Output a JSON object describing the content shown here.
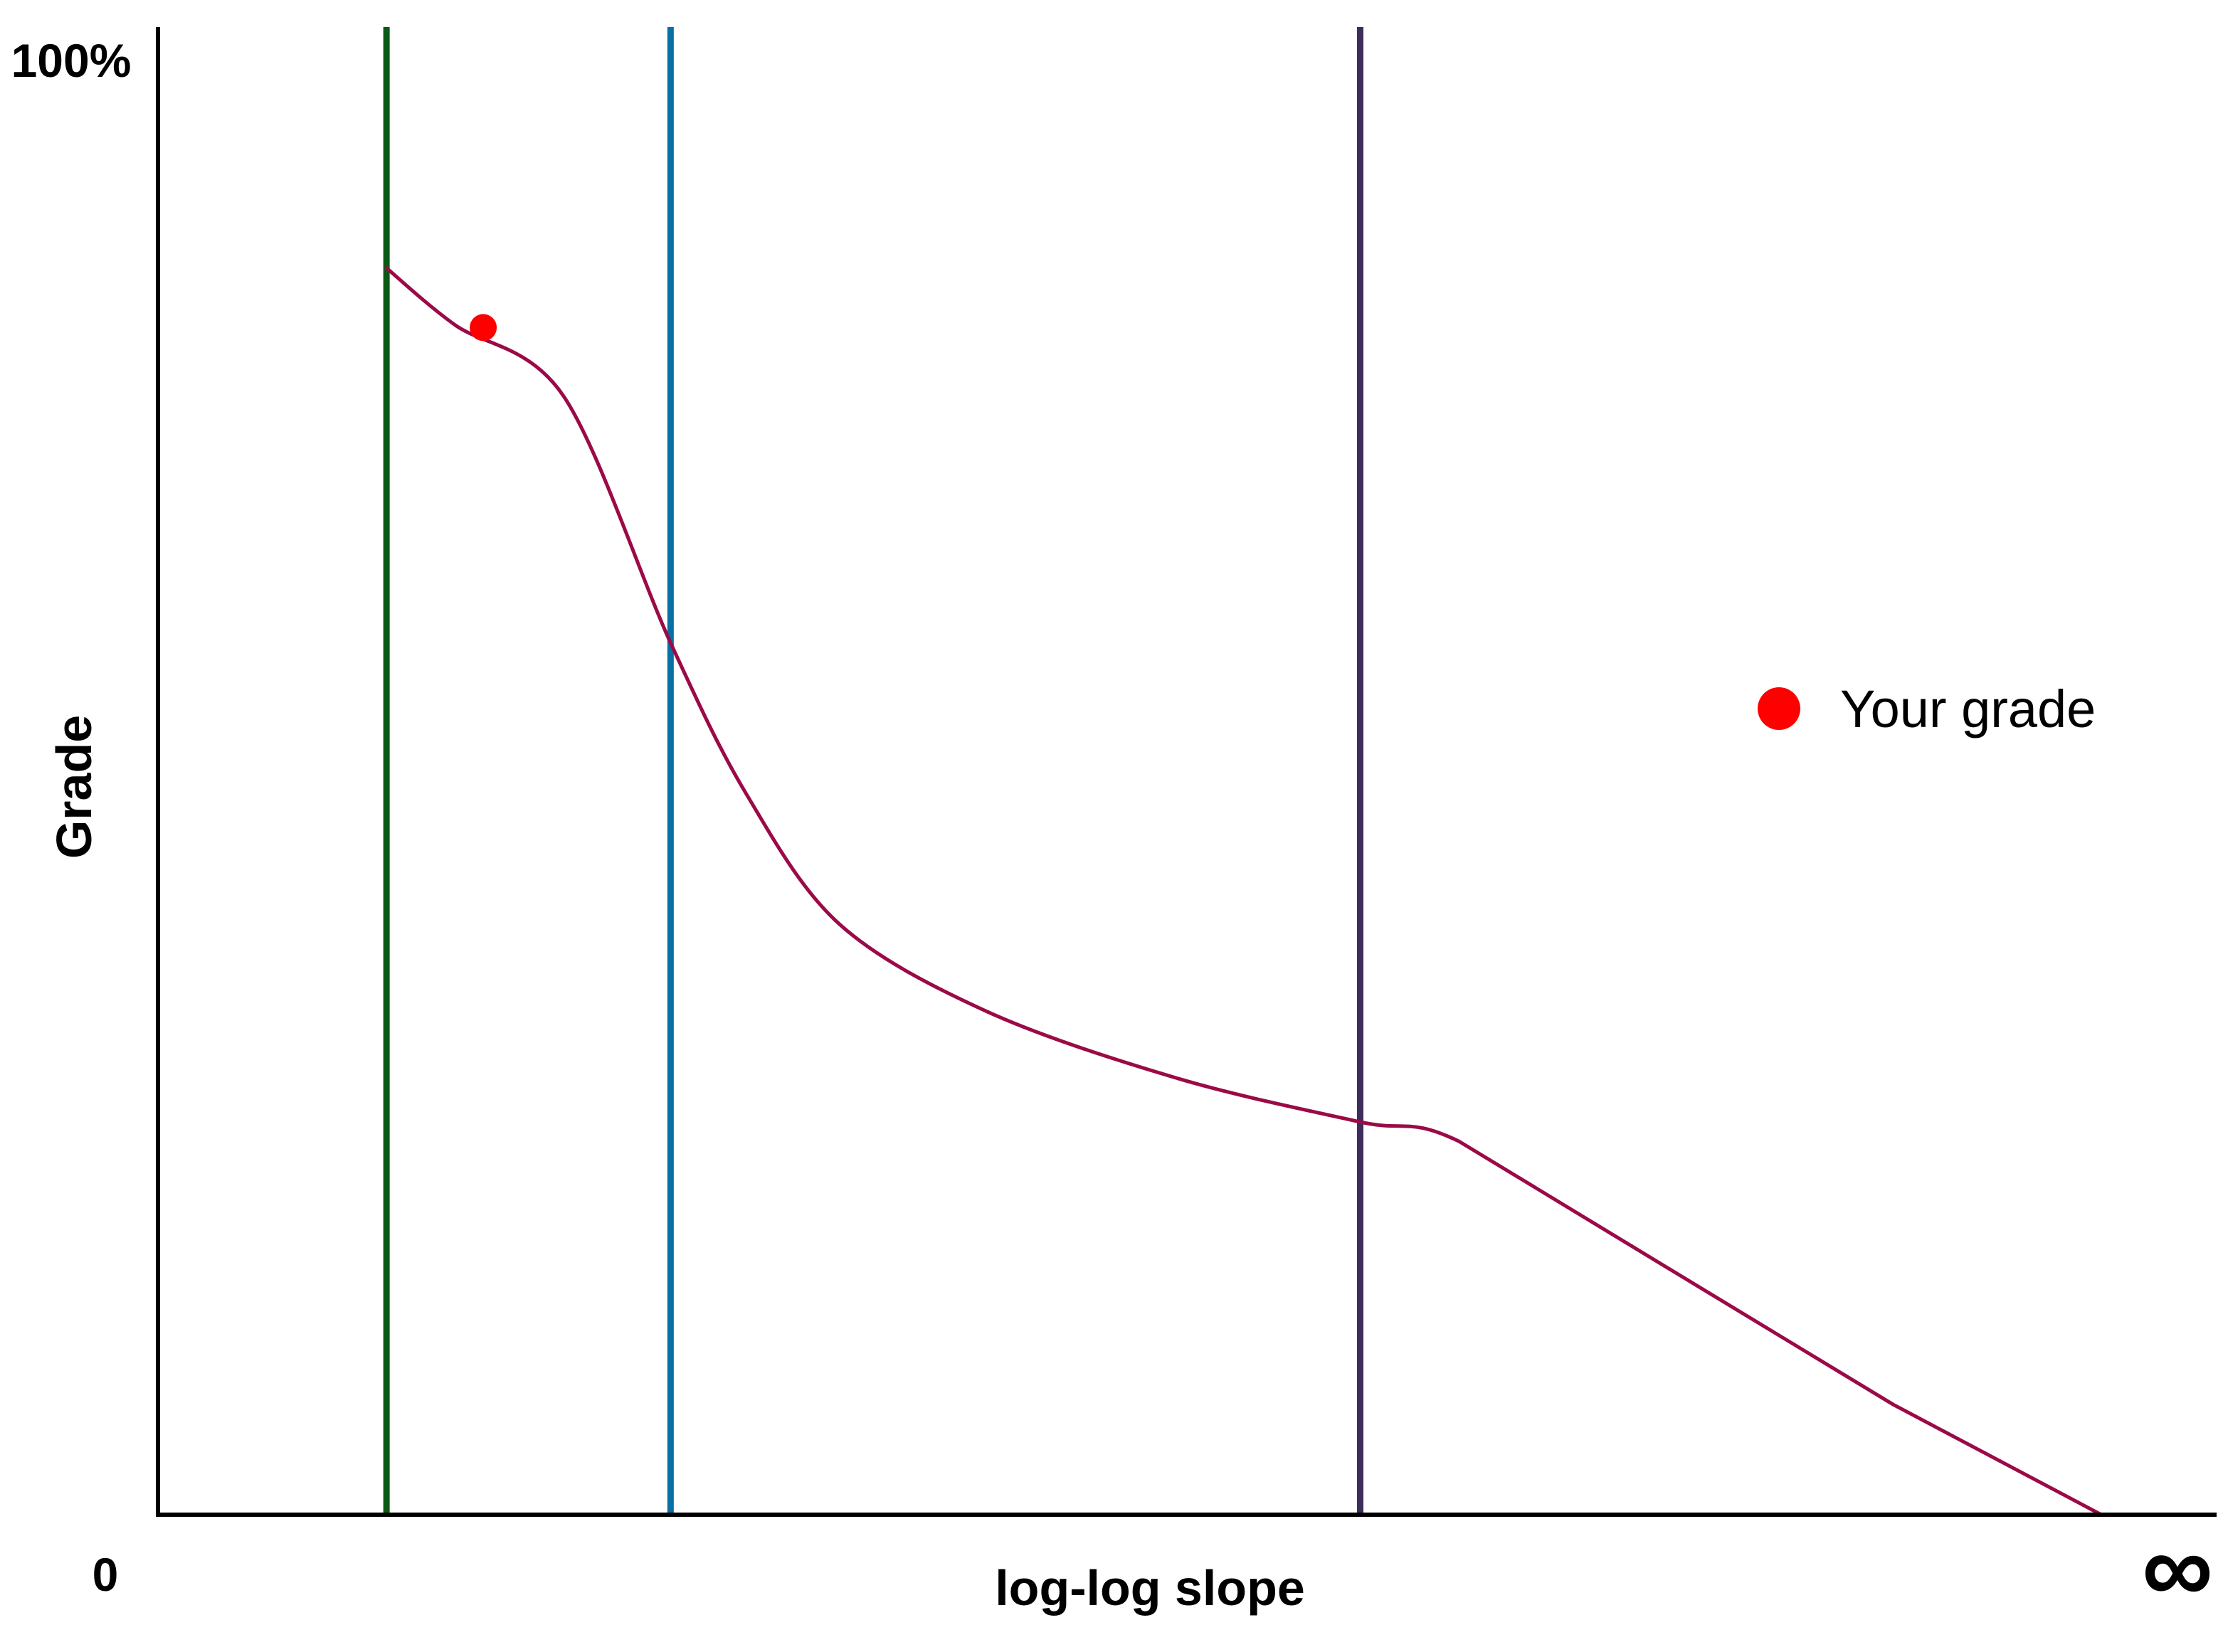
{
  "chart_data": {
    "type": "line",
    "xlabel": "log-log slope",
    "ylabel": "Grade",
    "x_tick_labels": {
      "start": "0",
      "end": "∞"
    },
    "y_tick_labels": {
      "top": "100%"
    },
    "xlim": [
      0,
      100
    ],
    "ylim": [
      0,
      100
    ],
    "grid": false,
    "legend_position": "right",
    "series": [
      {
        "style": "curve",
        "color": "#9b0a47",
        "x": [
          11.1,
          14.4,
          19.7,
          24.9,
          28.6,
          33.1,
          40.3,
          49.6,
          58.4,
          63.2,
          73.8,
          84.3,
          94.4
        ],
        "y": [
          83.8,
          80.0,
          75.2,
          58.6,
          48.4,
          39.7,
          33.8,
          29.3,
          26.4,
          25.1,
          16.2,
          7.4,
          0.0
        ]
      }
    ],
    "vertical_lines": [
      {
        "x": 11.1,
        "color": "#0b5a14"
      },
      {
        "x": 24.9,
        "color": "#0a6fa3"
      },
      {
        "x": 58.4,
        "color": "#3d2d5b"
      }
    ],
    "markers": [
      {
        "label": "Your grade",
        "x": 15.8,
        "y": 79.8,
        "color": "#ff0000"
      }
    ],
    "legend": [
      {
        "label": "Your grade",
        "color": "#ff0000",
        "symbol": "dot"
      }
    ]
  }
}
